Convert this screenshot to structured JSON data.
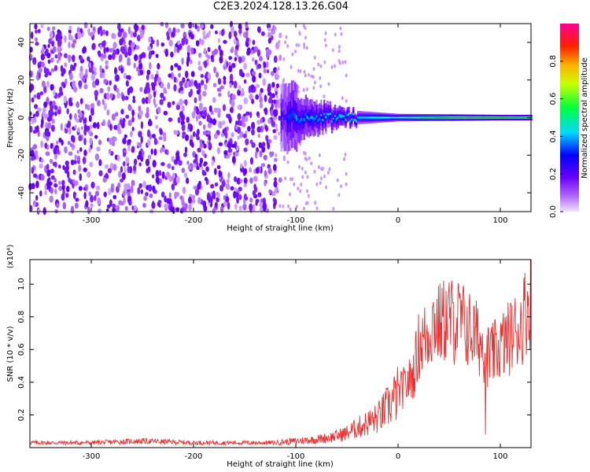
{
  "title": "C2E3.2024.128.13.26.G04",
  "colors": {
    "snr_line": "#e83030",
    "axis": "#000000",
    "background": "#ffffff"
  },
  "chart_data": [
    {
      "type": "heatmap",
      "xlabel": "Height of straight line (km)",
      "ylabel": "Frequency (Hz)",
      "xlim": [
        -360,
        130
      ],
      "ylim": [
        -50,
        50
      ],
      "x_ticks": [
        -300,
        -200,
        -100,
        0,
        100
      ],
      "y_ticks": [
        -40,
        -20,
        0,
        20,
        40
      ],
      "grid": false,
      "colorbar": {
        "label": "Normalized spectral amplitude",
        "ticks": [
          0.0,
          0.2,
          0.4,
          0.6,
          0.8
        ],
        "range": [
          0,
          1
        ],
        "colormap": "rainbow (purple → blue → cyan → green → yellow → red → magenta)"
      },
      "structure": {
        "noise_region_x": [
          -360,
          -115
        ],
        "noise_amplitude": 0.05,
        "signal_onset_x": -115,
        "signal_center_frequency_hz": 0,
        "signal_width_hz": {
          "at_-100": 12,
          "at_-50": 4,
          "at_0": 2,
          "at_100": 1.5
        },
        "peak_amplitude_region_x": [
          50,
          130
        ],
        "peak_amplitude": 1.0
      }
    },
    {
      "type": "line",
      "xlabel": "Height of straight line (km)",
      "ylabel": "SNR (10 * v/v)",
      "y_multiplier": "(x10⁴)",
      "xlim": [
        -360,
        130
      ],
      "ylim": [
        0,
        1.15
      ],
      "x_ticks": [
        -300,
        -200,
        -100,
        0,
        100
      ],
      "y_ticks": [
        0.2,
        0.4,
        0.6,
        0.8,
        1.0
      ],
      "grid": false,
      "series": [
        {
          "x": [
            -360,
            -300,
            -250,
            -200,
            -150,
            -120,
            -100,
            -80,
            -60,
            -50,
            -40,
            -30,
            -20,
            -10,
            0,
            10,
            15,
            20,
            30,
            35,
            40,
            50,
            55,
            60,
            70,
            80,
            87,
            90,
            100,
            110,
            120,
            125,
            130
          ],
          "y": [
            0.03,
            0.03,
            0.04,
            0.03,
            0.03,
            0.03,
            0.04,
            0.05,
            0.07,
            0.09,
            0.12,
            0.15,
            0.18,
            0.25,
            0.33,
            0.4,
            0.45,
            0.62,
            0.7,
            0.78,
            0.75,
            0.8,
            0.76,
            0.78,
            0.72,
            0.65,
            0.57,
            0.55,
            0.62,
            0.68,
            0.75,
            0.85,
            0.92
          ]
        }
      ]
    }
  ]
}
